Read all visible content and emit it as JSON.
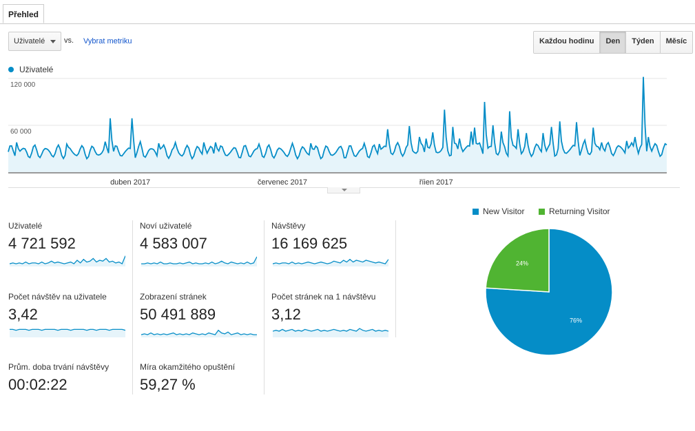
{
  "tab": {
    "label": "Přehled"
  },
  "metric_selector": {
    "value": "Uživatelé",
    "vs": "vs.",
    "pick_metric": "Vybrat metriku"
  },
  "granularity": {
    "options": [
      "Každou hodinu",
      "Den",
      "Týden",
      "Měsíc"
    ],
    "selected": "Den"
  },
  "colors": {
    "series": "#058dc7",
    "fill": "#e6f4fa",
    "new_visitor": "#058dc7",
    "returning_visitor": "#50b432",
    "grid": "#e5e5e5"
  },
  "chart_data": [
    {
      "type": "area",
      "title": "",
      "legend": "Uživatelé",
      "ylim": [
        0,
        120000
      ],
      "yticks": [
        {
          "value": 60000,
          "label": "60 000"
        },
        {
          "value": 120000,
          "label": "120 000"
        }
      ],
      "xticks": [
        {
          "label": "duben 2017",
          "index": 73
        },
        {
          "label": "červenec 2017",
          "index": 164
        },
        {
          "label": "říjen 2017",
          "index": 256
        }
      ],
      "baseline": 26000,
      "peaks": [
        [
          5,
          38000
        ],
        [
          35,
          36000
        ],
        [
          58,
          39000
        ],
        [
          61,
          69000
        ],
        [
          74,
          69000
        ],
        [
          79,
          39000
        ],
        [
          90,
          37000
        ],
        [
          100,
          38000
        ],
        [
          117,
          38000
        ],
        [
          124,
          38000
        ],
        [
          150,
          36000
        ],
        [
          170,
          37000
        ],
        [
          181,
          37000
        ],
        [
          199,
          33000
        ],
        [
          213,
          37000
        ],
        [
          222,
          36000
        ],
        [
          227,
          55000
        ],
        [
          240,
          59000
        ],
        [
          246,
          45000
        ],
        [
          250,
          43000
        ],
        [
          254,
          51000
        ],
        [
          261,
          80000
        ],
        [
          266,
          58000
        ],
        [
          270,
          43000
        ],
        [
          277,
          52000
        ],
        [
          279,
          57000
        ],
        [
          285,
          90000
        ],
        [
          290,
          60000
        ],
        [
          295,
          52000
        ],
        [
          300,
          78000
        ],
        [
          305,
          55000
        ],
        [
          310,
          50000
        ],
        [
          320,
          50000
        ],
        [
          325,
          58000
        ],
        [
          330,
          65000
        ],
        [
          340,
          64000
        ],
        [
          345,
          41000
        ],
        [
          350,
          57000
        ],
        [
          355,
          38000
        ],
        [
          370,
          40000
        ],
        [
          375,
          45000
        ],
        [
          380,
          122000
        ],
        [
          383,
          45000
        ]
      ]
    },
    {
      "type": "pie",
      "categories": [
        "New Visitor",
        "Returning Visitor"
      ],
      "values": [
        76,
        24
      ],
      "labels": [
        "76%",
        "24%"
      ]
    }
  ],
  "metrics": [
    {
      "label": "Uživatelé",
      "value": "4 721 592",
      "spark": [
        3,
        4,
        3,
        4,
        3,
        5,
        3,
        4,
        4,
        3,
        5,
        3,
        4,
        6,
        4,
        5,
        4,
        3,
        4,
        5,
        3,
        7,
        4,
        8,
        5,
        6,
        9,
        5,
        7,
        6,
        9,
        5,
        6,
        4,
        5,
        3,
        12
      ]
    },
    {
      "label": "Noví uživatelé",
      "value": "4 583 007",
      "spark": [
        3,
        3,
        4,
        3,
        4,
        3,
        5,
        3,
        3,
        4,
        3,
        3,
        4,
        3,
        4,
        5,
        3,
        4,
        3,
        3,
        4,
        3,
        5,
        3,
        4,
        6,
        4,
        3,
        5,
        4,
        3,
        4,
        3,
        5,
        3,
        4,
        11
      ]
    },
    {
      "label": "Návštěvy",
      "value": "16 169 625",
      "spark": [
        3,
        4,
        3,
        4,
        4,
        3,
        5,
        3,
        4,
        3,
        4,
        5,
        4,
        3,
        4,
        5,
        4,
        3,
        4,
        6,
        5,
        4,
        7,
        5,
        8,
        5,
        7,
        6,
        5,
        7,
        6,
        5,
        4,
        5,
        4,
        3,
        8
      ]
    },
    {
      "label": "Počet návštěv na uživatele",
      "value": "3,42",
      "spark": [
        9,
        9,
        8,
        9,
        9,
        9,
        8,
        9,
        9,
        9,
        8,
        9,
        9,
        9,
        9,
        8,
        9,
        9,
        9,
        8,
        9,
        9,
        9,
        9,
        8,
        9,
        9,
        8,
        9,
        9,
        9,
        8,
        9,
        9,
        9,
        9,
        8
      ]
    },
    {
      "label": "Zobrazení stránek",
      "value": "50 491 889",
      "spark": [
        3,
        4,
        3,
        5,
        3,
        4,
        3,
        4,
        3,
        4,
        5,
        3,
        4,
        3,
        4,
        3,
        5,
        4,
        3,
        4,
        3,
        5,
        4,
        3,
        8,
        5,
        4,
        6,
        3,
        4,
        5,
        3,
        4,
        3,
        4,
        3,
        3
      ]
    },
    {
      "label": "Počet stránek na 1 návštěvu",
      "value": "3,12",
      "spark": [
        7,
        8,
        7,
        9,
        7,
        8,
        9,
        7,
        8,
        7,
        9,
        8,
        7,
        8,
        9,
        7,
        8,
        7,
        8,
        9,
        8,
        7,
        8,
        7,
        9,
        8,
        7,
        10,
        8,
        7,
        8,
        9,
        7,
        8,
        7,
        8,
        7
      ]
    },
    {
      "label": "Prům. doba trvání návštěvy",
      "value": "00:02:22",
      "spark": []
    },
    {
      "label": "Míra okamžitého opuštění",
      "value": "59,27 %",
      "spark": []
    }
  ]
}
